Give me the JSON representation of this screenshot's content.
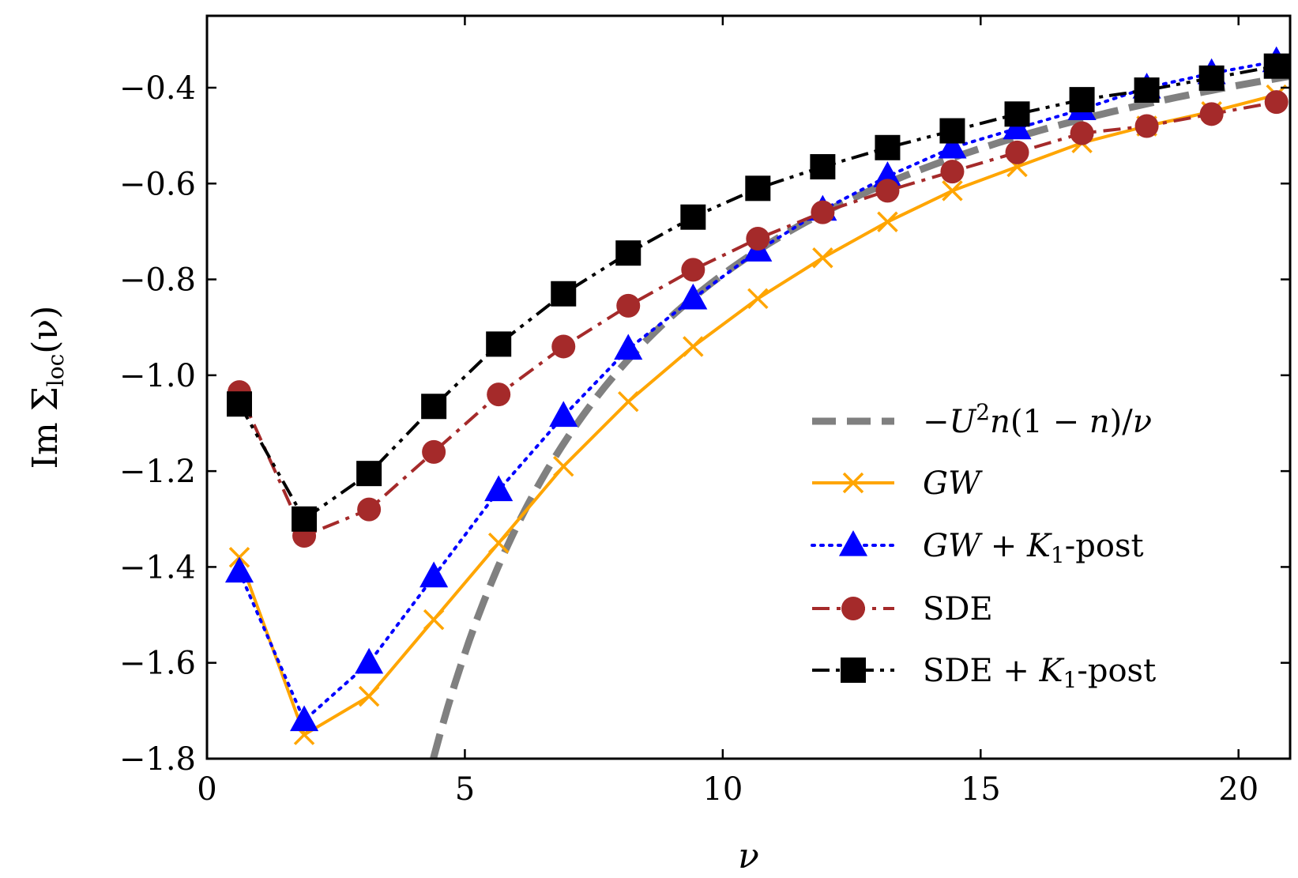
{
  "chart_data": {
    "type": "line",
    "title": "",
    "xlabel": "ν",
    "ylabel": "Im Σloc(ν)",
    "ylabel_parts": {
      "prefix": "Im Σ",
      "subscript": "loc",
      "suffix": "(ν)"
    },
    "xlim": [
      0,
      21
    ],
    "ylim": [
      -1.8,
      -0.25
    ],
    "xticks": [
      0,
      5,
      10,
      15,
      20
    ],
    "yticks": [
      -1.8,
      -1.6,
      -1.4,
      -1.2,
      -1.0,
      -0.8,
      -0.6,
      -0.4
    ],
    "xtick_labels": [
      "0",
      "5",
      "10",
      "15",
      "20"
    ],
    "ytick_labels": [
      "−1.8",
      "−1.6",
      "−1.4",
      "−1.2",
      "−1.0",
      "−0.8",
      "−0.6",
      "−0.4"
    ],
    "grid": false,
    "legend_position": "lower-right",
    "x": [
      0.628,
      1.885,
      3.142,
      4.398,
      5.655,
      6.912,
      8.168,
      9.425,
      10.681,
      11.938,
      13.195,
      14.451,
      15.708,
      16.965,
      18.221,
      19.478,
      20.735
    ],
    "series": [
      {
        "name": "−U²n(1−n)/ν",
        "legend_parts": [
          {
            "text": "−",
            "style": "normal"
          },
          {
            "text": "U",
            "style": "italic"
          },
          {
            "text": "2",
            "style": "sup"
          },
          {
            "text": "n",
            "style": "italic"
          },
          {
            "text": "(1 − ",
            "style": "normal"
          },
          {
            "text": "n",
            "style": "italic"
          },
          {
            "text": ")/",
            "style": "normal"
          },
          {
            "text": "ν",
            "style": "italic"
          }
        ],
        "color": "#808080",
        "linestyle": "dashed",
        "marker": "none",
        "formula": "-7.9/x",
        "x_range": [
          4.39,
          21
        ]
      },
      {
        "name": "GW",
        "legend_parts": [
          {
            "text": "GW",
            "style": "italic"
          }
        ],
        "color": "#FFA500",
        "linestyle": "solid",
        "marker": "x",
        "values": [
          -1.38,
          -1.75,
          -1.67,
          -1.51,
          -1.35,
          -1.19,
          -1.055,
          -0.94,
          -0.84,
          -0.755,
          -0.68,
          -0.615,
          -0.565,
          -0.515,
          -0.48,
          -0.45,
          -0.415
        ]
      },
      {
        "name": "GW + K1-post",
        "legend_parts": [
          {
            "text": "GW",
            "style": "italic"
          },
          {
            "text": " + ",
            "style": "normal"
          },
          {
            "text": "K",
            "style": "italic"
          },
          {
            "text": "1",
            "style": "sub"
          },
          {
            "text": "-post",
            "style": "normal"
          }
        ],
        "color": "#0000FF",
        "linestyle": "dotted",
        "marker": "triangle",
        "values": [
          -1.41,
          -1.72,
          -1.6,
          -1.42,
          -1.24,
          -1.085,
          -0.945,
          -0.84,
          -0.74,
          -0.655,
          -0.585,
          -0.525,
          -0.485,
          -0.445,
          -0.4,
          -0.37,
          -0.345
        ]
      },
      {
        "name": "SDE",
        "legend_parts": [
          {
            "text": "SDE",
            "style": "normal"
          }
        ],
        "color": "#A52A2A",
        "linestyle": "dashdot",
        "marker": "circle",
        "values": [
          -1.035,
          -1.335,
          -1.28,
          -1.16,
          -1.04,
          -0.94,
          -0.855,
          -0.78,
          -0.715,
          -0.66,
          -0.615,
          -0.575,
          -0.535,
          -0.495,
          -0.48,
          -0.455,
          -0.43
        ]
      },
      {
        "name": "SDE + K1-post",
        "legend_parts": [
          {
            "text": "SDE + ",
            "style": "normal"
          },
          {
            "text": "K",
            "style": "italic"
          },
          {
            "text": "1",
            "style": "sub"
          },
          {
            "text": "-post",
            "style": "normal"
          }
        ],
        "color": "#000000",
        "linestyle": "dashdotdot",
        "marker": "square",
        "values": [
          -1.06,
          -1.3,
          -1.205,
          -1.065,
          -0.935,
          -0.83,
          -0.745,
          -0.67,
          -0.61,
          -0.565,
          -0.525,
          -0.49,
          -0.455,
          -0.425,
          -0.405,
          -0.38,
          -0.355
        ]
      }
    ]
  }
}
